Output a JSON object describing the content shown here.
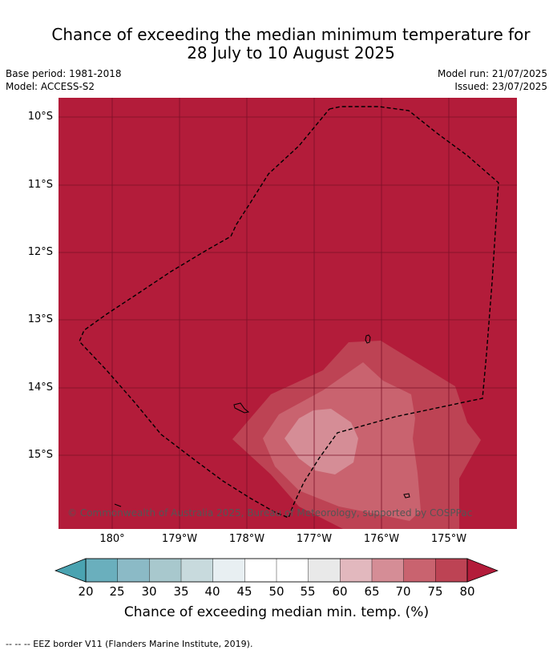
{
  "header": {
    "title_line1": "Chance of exceeding the median minimum temperature for",
    "title_line2": "28 July to 10 August 2025",
    "base_period": "Base period: 1981-2018",
    "model": "Model: ACCESS-S2",
    "model_run": "Model run: 21/07/2025",
    "issued": "Issued: 23/07/2025"
  },
  "map": {
    "lat_labels": [
      "10°S",
      "11°S",
      "12°S",
      "13°S",
      "14°S",
      "15°S"
    ],
    "lon_labels": [
      "180°",
      "179°W",
      "178°W",
      "177°W",
      "176°W",
      "175°W"
    ],
    "copyright": "© Commonwealth of Australia 2025, Bureau of Meteorology, supported by COSPPac",
    "background_color": "#b31c3a",
    "dominant_category": "> 80"
  },
  "colorbar": {
    "ticks": [
      "20",
      "25",
      "30",
      "35",
      "40",
      "45",
      "50",
      "55",
      "60",
      "65",
      "70",
      "75",
      "80"
    ],
    "colors": [
      "#6aafbd",
      "#8bbac6",
      "#a8c8cd",
      "#c8dadd",
      "#e8eff2",
      "#ffffff",
      "#ffffff",
      "#e9e9e9",
      "#e2b8be",
      "#d58d96",
      "#c9636f",
      "#bd4354"
    ],
    "under_color": "#4aa3b1",
    "over_color": "#b31c3a",
    "label": "Chance of exceeding median min. temp. (%)"
  },
  "footnote": "-- -- -- EEZ border V11 (Flanders Marine Institute, 2019)."
}
